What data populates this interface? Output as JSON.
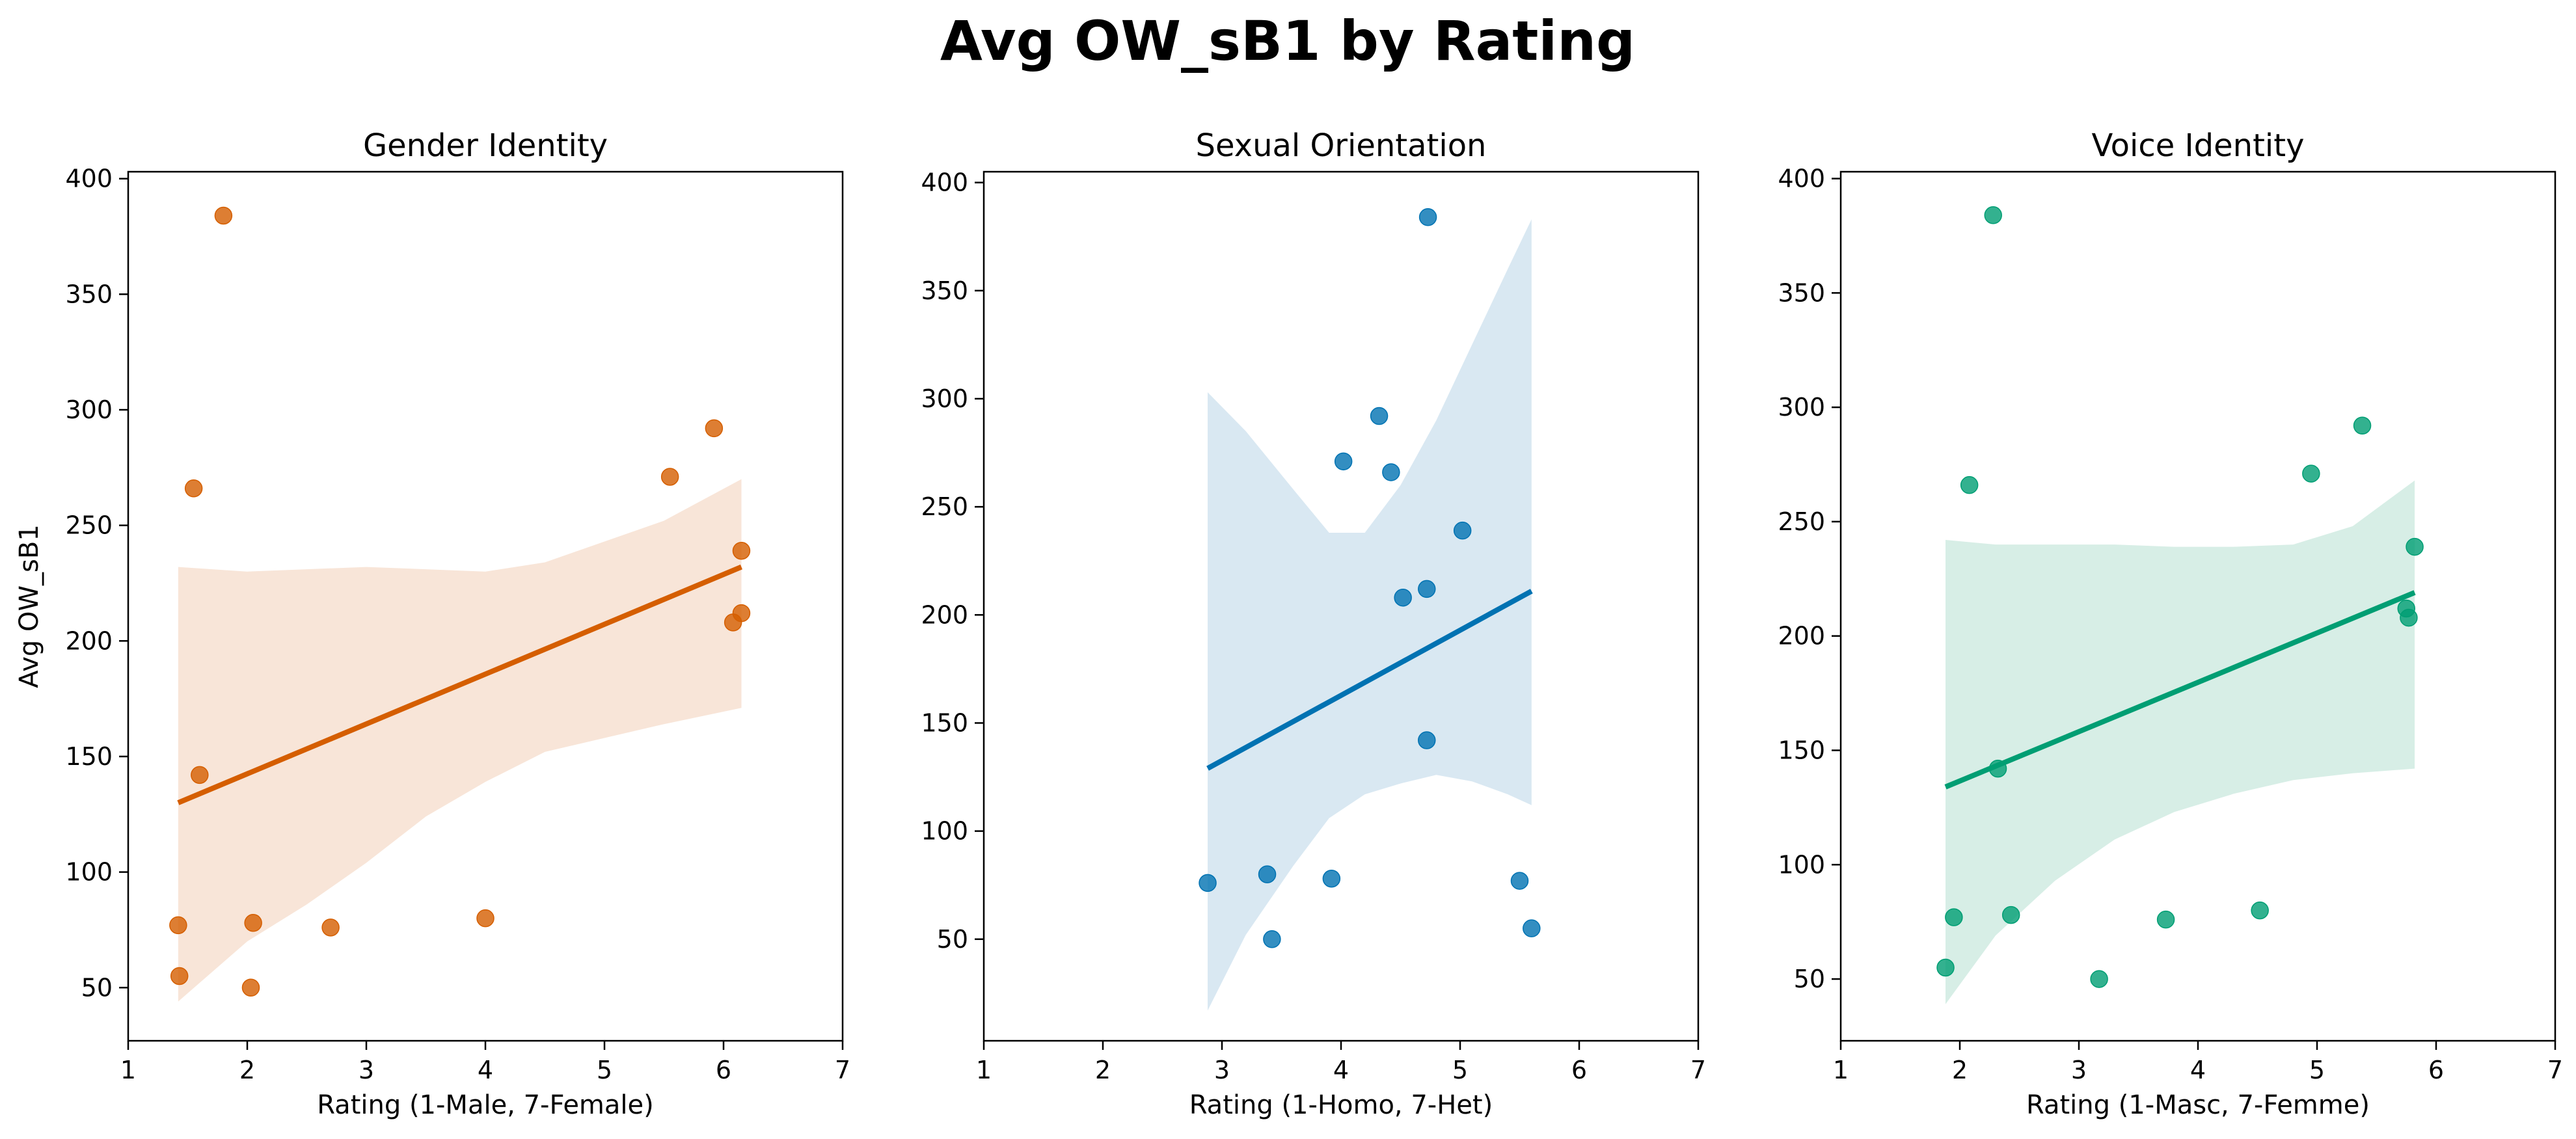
{
  "figure": {
    "title": "Avg OW_sB1 by Rating"
  },
  "chart_data": [
    {
      "type": "scatter",
      "title": "Gender Identity",
      "xlabel": "Rating (1-Male, 7-Female)",
      "ylabel": "Avg OW_sB1",
      "xlim": [
        1,
        7
      ],
      "ylim": [
        27,
        403
      ],
      "xticks": [
        1,
        2,
        3,
        4,
        5,
        6,
        7
      ],
      "yticks": [
        50,
        100,
        150,
        200,
        250,
        300,
        350,
        400
      ],
      "color": "#d55e00",
      "band_color": "#f8e5d8",
      "grid": false,
      "series": [
        {
          "points": [
            [
              1.8,
              384
            ],
            [
              1.55,
              266
            ],
            [
              1.6,
              142
            ],
            [
              1.42,
              77
            ],
            [
              1.43,
              55
            ],
            [
              2.05,
              78
            ],
            [
              2.03,
              50
            ],
            [
              2.7,
              76
            ],
            [
              4.0,
              80
            ],
            [
              5.55,
              271
            ],
            [
              5.92,
              292
            ],
            [
              6.15,
              239
            ],
            [
              6.15,
              212
            ],
            [
              6.08,
              208
            ]
          ]
        }
      ],
      "regression": {
        "x": [
          1.42,
          6.15
        ],
        "y": [
          130,
          232
        ]
      },
      "confidence_band": {
        "x": [
          1.42,
          2.0,
          2.5,
          3.0,
          3.5,
          4.0,
          4.5,
          5.0,
          5.5,
          6.15
        ],
        "upper": [
          232,
          230,
          231,
          232,
          231,
          230,
          234,
          243,
          252,
          270
        ],
        "lower": [
          44,
          70,
          86,
          104,
          124,
          139,
          152,
          158,
          164,
          171
        ]
      }
    },
    {
      "type": "scatter",
      "title": "Sexual Orientation",
      "xlabel": "Rating (1-Homo, 7-Het)",
      "ylabel": "",
      "xlim": [
        1,
        7
      ],
      "ylim": [
        3,
        405
      ],
      "xticks": [
        1,
        2,
        3,
        4,
        5,
        6,
        7
      ],
      "yticks": [
        50,
        100,
        150,
        200,
        250,
        300,
        350,
        400
      ],
      "color": "#0072b2",
      "band_color": "#d9e8f2",
      "grid": false,
      "series": [
        {
          "points": [
            [
              4.73,
              384
            ],
            [
              4.32,
              292
            ],
            [
              4.02,
              271
            ],
            [
              4.42,
              266
            ],
            [
              5.02,
              239
            ],
            [
              4.52,
              208
            ],
            [
              4.72,
              212
            ],
            [
              4.72,
              142
            ],
            [
              2.88,
              76
            ],
            [
              3.38,
              80
            ],
            [
              3.42,
              50
            ],
            [
              3.92,
              78
            ],
            [
              5.5,
              77
            ],
            [
              5.6,
              55
            ]
          ]
        }
      ],
      "regression": {
        "x": [
          2.88,
          5.6
        ],
        "y": [
          129,
          211
        ]
      },
      "confidence_band": {
        "x": [
          2.88,
          3.2,
          3.6,
          3.9,
          4.2,
          4.5,
          4.8,
          5.1,
          5.4,
          5.6
        ],
        "upper": [
          303,
          285,
          258,
          238,
          238,
          260,
          290,
          325,
          360,
          383
        ],
        "lower": [
          17,
          52,
          84,
          106,
          117,
          122,
          126,
          123,
          117,
          112
        ]
      }
    },
    {
      "type": "scatter",
      "title": "Voice Identity",
      "xlabel": "Rating (1-Masc, 7-Femme)",
      "ylabel": "",
      "xlim": [
        1,
        7
      ],
      "ylim": [
        23,
        403
      ],
      "xticks": [
        1,
        2,
        3,
        4,
        5,
        6,
        7
      ],
      "yticks": [
        50,
        100,
        150,
        200,
        250,
        300,
        350,
        400
      ],
      "color": "#009e73",
      "band_color": "#d7eee6",
      "grid": false,
      "series": [
        {
          "points": [
            [
              2.28,
              384
            ],
            [
              2.08,
              266
            ],
            [
              2.32,
              142
            ],
            [
              1.95,
              77
            ],
            [
              1.88,
              55
            ],
            [
              2.43,
              78
            ],
            [
              3.17,
              50
            ],
            [
              3.73,
              76
            ],
            [
              4.52,
              80
            ],
            [
              4.95,
              271
            ],
            [
              5.38,
              292
            ],
            [
              5.82,
              239
            ],
            [
              5.75,
              212
            ],
            [
              5.77,
              208
            ]
          ]
        }
      ],
      "regression": {
        "x": [
          1.88,
          5.82
        ],
        "y": [
          134,
          219
        ]
      },
      "confidence_band": {
        "x": [
          1.88,
          2.3,
          2.8,
          3.3,
          3.8,
          4.3,
          4.8,
          5.3,
          5.82
        ],
        "upper": [
          242,
          240,
          240,
          240,
          239,
          239,
          240,
          248,
          268
        ],
        "lower": [
          39,
          69,
          93,
          111,
          123,
          131,
          137,
          140,
          142
        ]
      }
    }
  ]
}
